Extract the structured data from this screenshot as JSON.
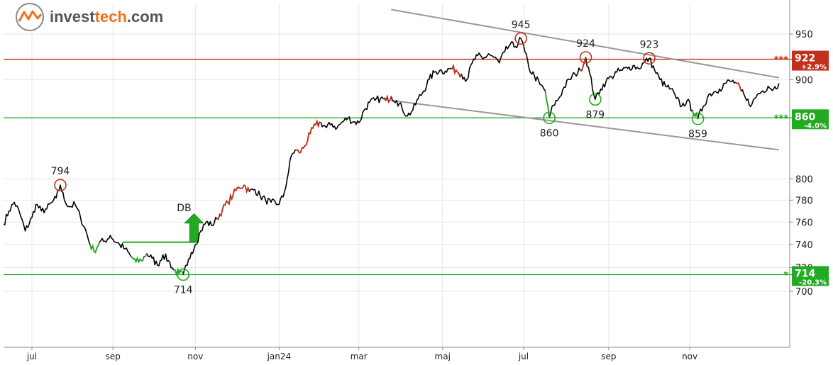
{
  "brand": {
    "name_part1": "invest",
    "name_part2": "tech",
    "name_part3": ".com",
    "icon": "investtech-logo-icon",
    "color_dark": "#555555",
    "color_accent": "#f07020"
  },
  "chart_data": {
    "type": "line",
    "title": "",
    "xlabel": "",
    "ylabel": "",
    "y_scale": "log",
    "ylim": [
      655,
      985
    ],
    "x_range": [
      "2023-06-12",
      "2025-01-14"
    ],
    "grid": true,
    "x_ticks": [
      {
        "date": "2023-07-03",
        "label": "jul"
      },
      {
        "date": "2023-09-01",
        "label": "sep"
      },
      {
        "date": "2023-11-01",
        "label": "nov"
      },
      {
        "date": "2024-01-02",
        "label": "jan24"
      },
      {
        "date": "2024-03-01",
        "label": "mar"
      },
      {
        "date": "2024-05-02",
        "label": "maj"
      },
      {
        "date": "2024-07-01",
        "label": "jul"
      },
      {
        "date": "2024-09-02",
        "label": "sep"
      },
      {
        "date": "2024-11-01",
        "label": "nov"
      }
    ],
    "y_ticks": [
      {
        "value": 700,
        "label": "700"
      },
      {
        "value": 720,
        "label": "720"
      },
      {
        "value": 740,
        "label": "740"
      },
      {
        "value": 760,
        "label": "760"
      },
      {
        "value": 780,
        "label": "780"
      },
      {
        "value": 800,
        "label": "800"
      },
      {
        "value": 900,
        "label": "900"
      },
      {
        "value": 950,
        "label": "950"
      }
    ],
    "series": [
      {
        "color": "#000000",
        "points": [
          [
            "2023-06-12",
            758
          ],
          [
            "2023-06-16",
            770
          ],
          [
            "2023-06-20",
            778
          ],
          [
            "2023-06-24",
            768
          ],
          [
            "2023-06-28",
            752
          ],
          [
            "2023-07-03",
            764
          ],
          [
            "2023-07-06",
            776
          ],
          [
            "2023-07-10",
            770
          ],
          [
            "2023-07-14",
            772
          ],
          [
            "2023-07-18",
            778
          ],
          [
            "2023-07-21",
            782
          ],
          [
            "2023-07-24",
            794
          ],
          [
            "2023-07-27",
            780
          ],
          [
            "2023-07-31",
            774
          ],
          [
            "2023-08-04",
            776
          ],
          [
            "2023-08-08",
            764
          ],
          [
            "2023-08-12",
            752
          ],
          [
            "2023-08-15",
            740
          ],
          [
            "2023-08-18",
            734
          ],
          [
            "2023-08-22",
            742
          ],
          [
            "2023-08-26",
            743
          ],
          [
            "2023-08-30",
            748
          ],
          [
            "2023-09-03",
            742
          ],
          [
            "2023-09-06",
            740
          ],
          [
            "2023-09-10",
            736
          ],
          [
            "2023-09-14",
            730
          ],
          [
            "2023-09-18",
            725
          ],
          [
            "2023-09-22",
            726
          ],
          [
            "2023-09-26",
            732
          ],
          [
            "2023-09-30",
            728
          ],
          [
            "2023-10-04",
            722
          ],
          [
            "2023-10-08",
            731
          ],
          [
            "2023-10-12",
            726
          ],
          [
            "2023-10-16",
            718
          ],
          [
            "2023-10-20",
            715
          ],
          [
            "2023-10-23",
            714
          ],
          [
            "2023-10-26",
            722
          ],
          [
            "2023-10-29",
            733
          ],
          [
            "2023-11-01",
            740
          ],
          [
            "2023-11-05",
            752
          ],
          [
            "2023-11-09",
            760
          ],
          [
            "2023-11-13",
            757
          ],
          [
            "2023-11-17",
            763
          ],
          [
            "2023-11-21",
            771
          ],
          [
            "2023-11-25",
            778
          ],
          [
            "2023-11-29",
            785
          ],
          [
            "2023-12-03",
            792
          ],
          [
            "2023-12-07",
            794
          ],
          [
            "2023-12-11",
            788
          ],
          [
            "2023-12-15",
            790
          ],
          [
            "2023-12-19",
            784
          ],
          [
            "2023-12-23",
            780
          ],
          [
            "2023-12-27",
            778
          ],
          [
            "2024-01-01",
            776
          ],
          [
            "2024-01-05",
            783
          ],
          [
            "2024-01-08",
            800
          ],
          [
            "2024-01-11",
            822
          ],
          [
            "2024-01-14",
            828
          ],
          [
            "2024-01-17",
            825
          ],
          [
            "2024-01-21",
            832
          ],
          [
            "2024-01-25",
            844
          ],
          [
            "2024-01-29",
            853
          ],
          [
            "2024-02-02",
            855
          ],
          [
            "2024-02-06",
            850
          ],
          [
            "2024-02-10",
            854
          ],
          [
            "2024-02-14",
            850
          ],
          [
            "2024-02-18",
            856
          ],
          [
            "2024-02-22",
            860
          ],
          [
            "2024-02-26",
            856
          ],
          [
            "2024-03-01",
            855
          ],
          [
            "2024-03-05",
            868
          ],
          [
            "2024-03-09",
            876
          ],
          [
            "2024-03-13",
            878
          ],
          [
            "2024-03-17",
            880
          ],
          [
            "2024-03-21",
            878
          ],
          [
            "2024-03-25",
            882
          ],
          [
            "2024-03-29",
            878
          ],
          [
            "2024-04-02",
            870
          ],
          [
            "2024-04-06",
            862
          ],
          [
            "2024-04-10",
            868
          ],
          [
            "2024-04-14",
            880
          ],
          [
            "2024-04-18",
            888
          ],
          [
            "2024-04-22",
            900
          ],
          [
            "2024-04-26",
            908
          ],
          [
            "2024-04-30",
            910
          ],
          [
            "2024-05-04",
            909
          ],
          [
            "2024-05-08",
            912
          ],
          [
            "2024-05-12",
            910
          ],
          [
            "2024-05-16",
            906
          ],
          [
            "2024-05-20",
            900
          ],
          [
            "2024-05-24",
            918
          ],
          [
            "2024-05-28",
            926
          ],
          [
            "2024-06-01",
            922
          ],
          [
            "2024-06-05",
            928
          ],
          [
            "2024-06-09",
            924
          ],
          [
            "2024-06-13",
            918
          ],
          [
            "2024-06-17",
            930
          ],
          [
            "2024-06-21",
            938
          ],
          [
            "2024-06-25",
            936
          ],
          [
            "2024-06-29",
            945
          ],
          [
            "2024-07-02",
            930
          ],
          [
            "2024-07-05",
            912
          ],
          [
            "2024-07-09",
            904
          ],
          [
            "2024-07-13",
            895
          ],
          [
            "2024-07-17",
            888
          ],
          [
            "2024-07-20",
            860
          ],
          [
            "2024-07-23",
            873
          ],
          [
            "2024-07-27",
            880
          ],
          [
            "2024-07-31",
            892
          ],
          [
            "2024-08-04",
            900
          ],
          [
            "2024-08-08",
            906
          ],
          [
            "2024-08-12",
            910
          ],
          [
            "2024-08-16",
            924
          ],
          [
            "2024-08-19",
            906
          ],
          [
            "2024-08-23",
            879
          ],
          [
            "2024-08-27",
            890
          ],
          [
            "2024-08-31",
            898
          ],
          [
            "2024-09-04",
            903
          ],
          [
            "2024-09-08",
            908
          ],
          [
            "2024-09-12",
            910
          ],
          [
            "2024-09-16",
            912
          ],
          [
            "2024-09-20",
            915
          ],
          [
            "2024-09-24",
            912
          ],
          [
            "2024-09-28",
            918
          ],
          [
            "2024-10-02",
            923
          ],
          [
            "2024-10-06",
            910
          ],
          [
            "2024-10-10",
            900
          ],
          [
            "2024-10-14",
            893
          ],
          [
            "2024-10-18",
            890
          ],
          [
            "2024-10-22",
            880
          ],
          [
            "2024-10-26",
            872
          ],
          [
            "2024-10-30",
            878
          ],
          [
            "2024-11-03",
            868
          ],
          [
            "2024-11-07",
            859
          ],
          [
            "2024-11-11",
            872
          ],
          [
            "2024-11-15",
            884
          ],
          [
            "2024-11-19",
            887
          ],
          [
            "2024-11-23",
            890
          ],
          [
            "2024-11-27",
            896
          ],
          [
            "2024-12-01",
            898
          ],
          [
            "2024-12-05",
            897
          ],
          [
            "2024-12-09",
            888
          ],
          [
            "2024-12-13",
            878
          ],
          [
            "2024-12-17",
            874
          ],
          [
            "2024-12-21",
            884
          ],
          [
            "2024-12-25",
            888
          ],
          [
            "2024-12-29",
            893
          ],
          [
            "2025-01-02",
            890
          ],
          [
            "2025-01-06",
            896
          ]
        ]
      }
    ],
    "horizontal_levels": [
      {
        "value": 922,
        "color": "#c0301c",
        "stars": "***",
        "label": "922",
        "change": "+2.9%"
      },
      {
        "value": 860,
        "color": "#22aa22",
        "stars": "***",
        "label": "860",
        "change": "-4.0%"
      },
      {
        "value": 714,
        "color": "#22aa22",
        "stars": "*",
        "label": "714",
        "change": "-20.3%"
      }
    ],
    "trend_channel": {
      "color": "#999999",
      "upper": [
        [
          "2024-03-25",
          978
        ],
        [
          "2025-01-06",
          902
        ]
      ],
      "lower": [
        [
          "2024-03-25",
          878
        ],
        [
          "2025-01-06",
          828
        ]
      ]
    },
    "double_bottom": {
      "label": "DB",
      "neckline_value": 742,
      "neckline_start": "2023-09-08",
      "neckline_end": "2023-11-01",
      "arrow_date": "2023-10-31"
    },
    "extreme_points": [
      {
        "date": "2023-07-24",
        "value": 794,
        "label": "794",
        "kind": "top"
      },
      {
        "date": "2023-10-23",
        "value": 714,
        "label": "714",
        "kind": "bottom"
      },
      {
        "date": "2024-06-29",
        "value": 945,
        "label": "945",
        "kind": "top"
      },
      {
        "date": "2024-07-20",
        "value": 860,
        "label": "860",
        "kind": "bottom"
      },
      {
        "date": "2024-08-16",
        "value": 924,
        "label": "924",
        "kind": "top"
      },
      {
        "date": "2024-08-23",
        "value": 879,
        "label": "879",
        "kind": "bottom"
      },
      {
        "date": "2024-10-02",
        "value": 923,
        "label": "923",
        "kind": "top"
      },
      {
        "date": "2024-11-07",
        "value": 859,
        "label": "859",
        "kind": "bottom"
      }
    ],
    "highlight_segments": [
      {
        "color": "#22aa22",
        "from": "2023-08-15",
        "to": "2023-08-22"
      },
      {
        "color": "#22aa22",
        "from": "2023-09-14",
        "to": "2023-09-26"
      },
      {
        "color": "#22aa22",
        "from": "2023-10-16",
        "to": "2023-10-23"
      },
      {
        "color": "#c0301c",
        "from": "2023-11-17",
        "to": "2023-12-11"
      },
      {
        "color": "#c0301c",
        "from": "2024-01-14",
        "to": "2024-02-02"
      },
      {
        "color": "#c0301c",
        "from": "2024-03-21",
        "to": "2024-03-25"
      },
      {
        "color": "#c0301c",
        "from": "2024-05-08",
        "to": "2024-05-16"
      },
      {
        "color": "#c0301c",
        "from": "2024-08-12",
        "to": "2024-08-16"
      },
      {
        "color": "#22aa22",
        "from": "2024-07-17",
        "to": "2024-07-20"
      },
      {
        "color": "#c0301c",
        "from": "2024-12-05",
        "to": "2024-12-09"
      },
      {
        "color": "#22aa22",
        "from": "2024-11-03",
        "to": "2024-11-07"
      }
    ]
  }
}
